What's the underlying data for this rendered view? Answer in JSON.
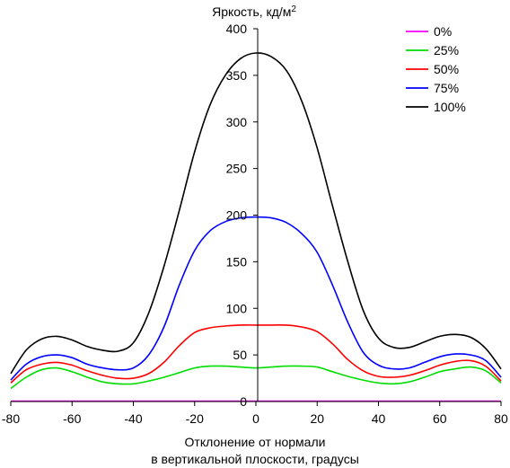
{
  "chart_data": {
    "type": "line",
    "title": "",
    "ylabel": "Яркость, кд/м²",
    "xlabel_lines": [
      "Отклонение от нормали",
      "в вертикальной плоскости, градусы"
    ],
    "xlim": [
      -80,
      80
    ],
    "ylim": [
      0,
      400
    ],
    "x_ticks": [
      -80,
      -60,
      -40,
      -20,
      0,
      20,
      40,
      60,
      80
    ],
    "y_ticks": [
      0,
      50,
      100,
      150,
      200,
      250,
      300,
      350,
      400
    ],
    "grid": false,
    "legend_position": "top-right",
    "x": [
      -80,
      -75,
      -70,
      -65,
      -60,
      -55,
      -50,
      -45,
      -40,
      -35,
      -30,
      -25,
      -20,
      -15,
      -10,
      -5,
      0,
      5,
      10,
      15,
      20,
      25,
      30,
      35,
      40,
      45,
      50,
      55,
      60,
      65,
      70,
      75,
      80
    ],
    "series": [
      {
        "name": "0%",
        "color": "#ff00ff",
        "values": [
          0.5,
          0.5,
          0.5,
          0.5,
          0.5,
          0.5,
          0.5,
          0.5,
          0.5,
          0.5,
          0.5,
          0.5,
          0.5,
          0.5,
          0.5,
          0.5,
          0.5,
          0.5,
          0.5,
          0.5,
          0.5,
          0.5,
          0.5,
          0.5,
          0.5,
          0.5,
          0.5,
          0.5,
          0.5,
          0.5,
          0.5,
          0.5,
          0.5
        ]
      },
      {
        "name": "25%",
        "color": "#00dd00",
        "values": [
          14,
          26,
          34,
          36,
          32,
          26,
          21,
          19,
          19,
          22,
          26,
          31,
          36,
          38,
          38,
          37,
          36,
          37,
          38,
          38,
          37,
          32,
          27,
          23,
          20,
          19,
          21,
          26,
          32,
          35,
          37,
          33,
          20
        ]
      },
      {
        "name": "50%",
        "color": "#ff0000",
        "values": [
          20,
          34,
          40,
          42,
          39,
          33,
          28,
          25,
          25,
          30,
          42,
          60,
          74,
          79,
          81,
          82,
          82,
          82,
          82,
          80,
          75,
          62,
          45,
          33,
          27,
          26,
          28,
          33,
          39,
          43,
          44,
          38,
          22
        ]
      },
      {
        "name": "75%",
        "color": "#0000ff",
        "values": [
          23,
          40,
          48,
          50,
          47,
          40,
          36,
          34,
          36,
          50,
          80,
          125,
          162,
          183,
          193,
          197,
          198,
          197,
          192,
          180,
          160,
          125,
          85,
          53,
          39,
          35,
          36,
          42,
          48,
          51,
          50,
          44,
          26
        ]
      },
      {
        "name": "100%",
        "color": "#000000",
        "values": [
          30,
          55,
          67,
          70,
          66,
          59,
          55,
          54,
          63,
          95,
          145,
          205,
          268,
          318,
          350,
          368,
          374,
          370,
          355,
          322,
          272,
          210,
          150,
          98,
          68,
          58,
          58,
          64,
          70,
          72,
          69,
          57,
          35
        ]
      }
    ]
  }
}
